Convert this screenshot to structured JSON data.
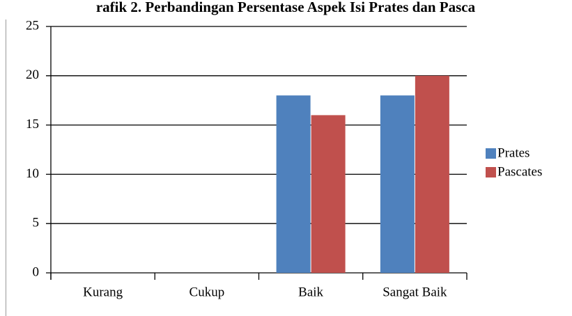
{
  "chart_data": {
    "type": "bar",
    "title": "rafik 2. Perbandingan Persentase Aspek Isi Prates dan Pasca",
    "categories": [
      "Kurang",
      "Cukup",
      "Baik",
      "Sangat Baik"
    ],
    "series": [
      {
        "name": "Prates",
        "color": "#4f81bd",
        "values": [
          0,
          0,
          18,
          18
        ]
      },
      {
        "name": "Pascates",
        "color": "#c0504d",
        "values": [
          0,
          0,
          16,
          20
        ]
      }
    ],
    "ylim": [
      0,
      25
    ],
    "yticks": [
      0,
      5,
      10,
      15,
      20,
      25
    ],
    "grid": true,
    "legend": "right"
  }
}
